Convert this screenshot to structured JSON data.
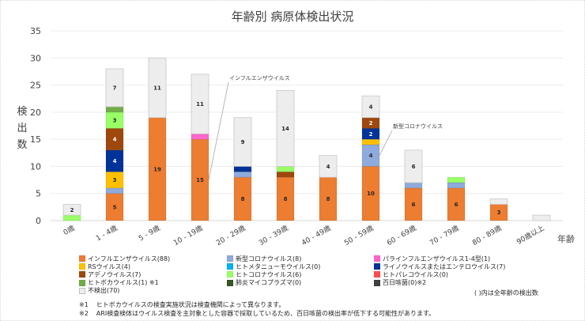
{
  "chart_data": {
    "type": "bar",
    "stacked": true,
    "title": "年齢別 病原体検出状況",
    "xlabel": "年齢",
    "ylabel": "検出数",
    "ylim": [
      0,
      35
    ],
    "yticks": [
      0,
      5,
      10,
      15,
      20,
      25,
      30,
      35
    ],
    "grid": true,
    "legend_position": "bottom",
    "categories": [
      "0歳",
      "1 - 4歳",
      "5 - 9歳",
      "10 - 19歳",
      "20 - 29歳",
      "30 - 39歳",
      "40 - 49歳",
      "50 - 59歳",
      "60 - 69歳",
      "70 - 79歳",
      "80 - 89歳",
      "90歳以上"
    ],
    "series": [
      {
        "name": "インフルエンザウイルス",
        "total": 88,
        "color": "#ED7D31",
        "values": [
          0,
          5,
          19,
          15,
          8,
          8,
          8,
          10,
          6,
          6,
          3,
          0
        ]
      },
      {
        "name": "新型コロナウイルス",
        "total": 8,
        "color": "#8FAADC",
        "values": [
          0,
          1,
          0,
          0,
          1,
          0,
          0,
          4,
          1,
          1,
          0,
          0
        ]
      },
      {
        "name": "RSウイルス",
        "total": 4,
        "color": "#FFC000",
        "values": [
          0,
          3,
          0,
          0,
          0,
          0,
          0,
          1,
          0,
          0,
          0,
          0
        ]
      },
      {
        "name": "ヒトメタニューモウイルス",
        "total": 0,
        "color": "#00B0F0",
        "values": [
          0,
          0,
          0,
          0,
          0,
          0,
          0,
          0,
          0,
          0,
          0,
          0
        ]
      },
      {
        "name": "パラインフルエンザウイルス1-4型",
        "total": 1,
        "color": "#FF66CC",
        "values": [
          0,
          0,
          0,
          1,
          0,
          0,
          0,
          0,
          0,
          0,
          0,
          0
        ]
      },
      {
        "name": "ライノウイルスまたはエンテロウイルス",
        "total": 7,
        "color": "#003399",
        "values": [
          0,
          4,
          0,
          0,
          1,
          0,
          0,
          2,
          0,
          0,
          0,
          0
        ]
      },
      {
        "name": "アデノウイルス",
        "total": 7,
        "color": "#9E480E",
        "values": [
          0,
          4,
          0,
          0,
          0,
          1,
          0,
          2,
          0,
          0,
          0,
          0
        ]
      },
      {
        "name": "ヒトパレコウイルス",
        "total": 0,
        "color": "#FF5050",
        "values": [
          0,
          0,
          0,
          0,
          0,
          0,
          0,
          0,
          0,
          0,
          0,
          0
        ]
      },
      {
        "name": "ヒトコロナウイルス",
        "total": 6,
        "color": "#99FF66",
        "values": [
          1,
          3,
          0,
          0,
          0,
          1,
          0,
          0,
          0,
          1,
          0,
          0
        ]
      },
      {
        "name": "ヒトボカウイルス",
        "total": 1,
        "color": "#70AD47",
        "values": [
          0,
          1,
          0,
          0,
          0,
          0,
          0,
          0,
          0,
          0,
          0,
          0
        ]
      },
      {
        "name": "肺炎マイコプラズマ",
        "total": 0,
        "color": "#375623",
        "values": [
          0,
          0,
          0,
          0,
          0,
          0,
          0,
          0,
          0,
          0,
          0,
          0
        ]
      },
      {
        "name": "百日咳菌",
        "total": 0,
        "color": "#404040",
        "values": [
          0,
          0,
          0,
          0,
          0,
          0,
          0,
          0,
          0,
          0,
          0,
          0
        ]
      },
      {
        "name": "不検出",
        "total": 70,
        "color": "#EDEDED",
        "values": [
          2,
          7,
          11,
          11,
          9,
          14,
          4,
          4,
          6,
          0,
          1,
          1
        ]
      }
    ],
    "stack_order": [
      "インフルエンザウイルス",
      "新型コロナウイルス",
      "RSウイルス",
      "ヒトメタニューモウイルス",
      "パラインフルエンザウイルス1-4型",
      "ライノウイルスまたはエンテロウイルス",
      "アデノウイルス",
      "ヒトパレコウイルス",
      "ヒトコロナウイルス",
      "ヒトボカウイルス",
      "肺炎マイコプラズマ",
      "百日咳菌",
      "不検出"
    ],
    "labeled_segments_min": 2,
    "annotations": [
      {
        "text": "インフルエンザウイルス",
        "category": "10 - 19歳",
        "series": "インフルエンザウイルス"
      },
      {
        "text": "新型コロナウイルス",
        "category": "50 - 59歳",
        "series": "新型コロナウイルス"
      }
    ]
  },
  "legend": {
    "items": [
      {
        "label": "インフルエンザウイルス(88)",
        "color": "#ED7D31",
        "col": 0,
        "row": 0
      },
      {
        "label": "新型コロナウイルス(8)",
        "color": "#8FAADC",
        "col": 1,
        "row": 0
      },
      {
        "label": "パラインフルエンザウイルス1-4型(1)",
        "color": "#FF66CC",
        "col": 2,
        "row": 0
      },
      {
        "label": "RSウイルス(4)",
        "color": "#FFC000",
        "col": 0,
        "row": 1
      },
      {
        "label": "ヒトメタニューモウイルス(0)",
        "color": "#00B0F0",
        "col": 1,
        "row": 1
      },
      {
        "label": "ライノウイルスまたはエンテロウイルス(7)",
        "color": "#003399",
        "col": 2,
        "row": 1
      },
      {
        "label": "アデノウイルス(7)",
        "color": "#9E480E",
        "col": 0,
        "row": 2
      },
      {
        "label": "ヒトコロナウイルス(6)",
        "color": "#99FF66",
        "col": 1,
        "row": 2
      },
      {
        "label": "ヒトパレコウイルス(0)",
        "color": "#FF5050",
        "col": 2,
        "row": 2
      },
      {
        "label": "ヒトボカウイルス(1) ※1",
        "color": "#70AD47",
        "col": 0,
        "row": 3
      },
      {
        "label": "肺炎マイコプラズマ(0)",
        "color": "#375623",
        "col": 1,
        "row": 3
      },
      {
        "label": "百日咳菌(0)※2",
        "color": "#404040",
        "col": 2,
        "row": 3
      },
      {
        "label": "不検出(70)",
        "color": "#EDEDED",
        "col": 0,
        "row": 4
      }
    ],
    "note": "( )内は全年齢の検出数"
  },
  "footnotes": [
    {
      "mark": "※1",
      "text": "ヒトボカウイルスの検査実施状況は検査機関によって異なります。"
    },
    {
      "mark": "※2",
      "text": "ARI検査検体はウイルス検査を主対象とした容器で採取しているため、百日咳菌の検出率が低下する可能性があります。"
    }
  ]
}
